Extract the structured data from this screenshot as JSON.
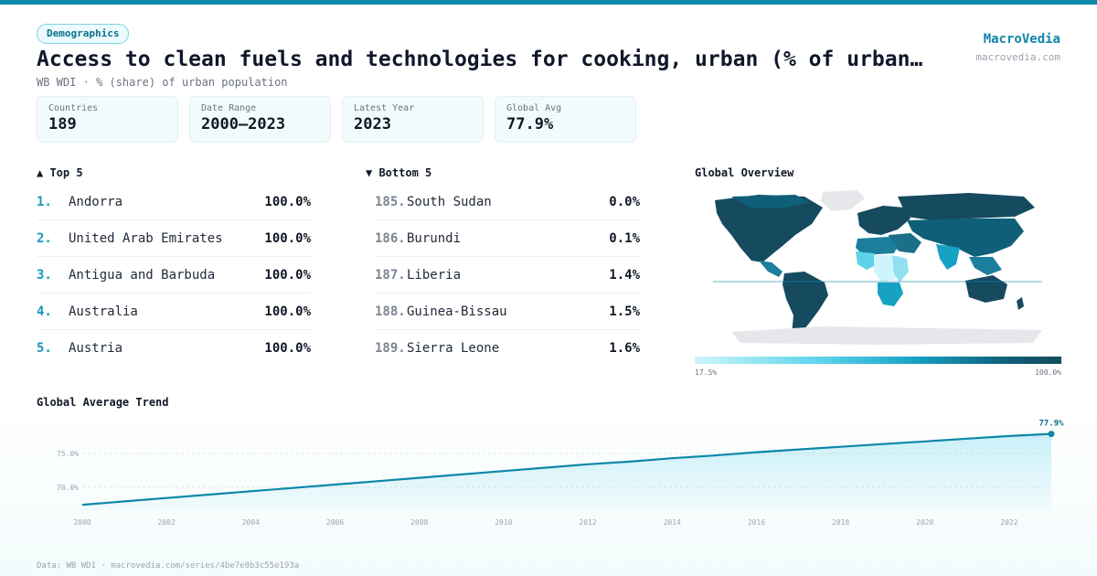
{
  "header": {
    "badge": "Demographics",
    "title": "Access to clean fuels and technologies for cooking, urban (% of urban po…",
    "subtitle": "WB WDI · % (share) of urban population",
    "brand": "MacroVedia",
    "brand_url": "macrovedia.com"
  },
  "stats": [
    {
      "label": "Countries",
      "value": "189"
    },
    {
      "label": "Date Range",
      "value": "2000–2023"
    },
    {
      "label": "Latest Year",
      "value": "2023"
    },
    {
      "label": "Global Avg",
      "value": "77.9%"
    }
  ],
  "top5": {
    "heading": "▲ Top 5",
    "items": [
      {
        "rank": "1.",
        "name": "Andorra",
        "value": "100.0%"
      },
      {
        "rank": "2.",
        "name": "United Arab Emirates",
        "value": "100.0%"
      },
      {
        "rank": "3.",
        "name": "Antigua and Barbuda",
        "value": "100.0%"
      },
      {
        "rank": "4.",
        "name": "Australia",
        "value": "100.0%"
      },
      {
        "rank": "5.",
        "name": "Austria",
        "value": "100.0%"
      }
    ]
  },
  "bottom5": {
    "heading": "▼ Bottom 5",
    "items": [
      {
        "rank": "185.",
        "name": "South Sudan",
        "value": "0.0%"
      },
      {
        "rank": "186.",
        "name": "Burundi",
        "value": "0.1%"
      },
      {
        "rank": "187.",
        "name": "Liberia",
        "value": "1.4%"
      },
      {
        "rank": "188.",
        "name": "Guinea-Bissau",
        "value": "1.5%"
      },
      {
        "rank": "189.",
        "name": "Sierra Leone",
        "value": "1.6%"
      }
    ]
  },
  "map": {
    "heading": "Global Overview",
    "legend_min": "17.5%",
    "legend_max": "100.0%",
    "colors": {
      "high": "#164a5f",
      "mid": "#17a2c4",
      "low": "#cdf5fb",
      "nodata": "#e5e7eb"
    }
  },
  "chart_data": {
    "type": "area",
    "title": "Global Average Trend",
    "x": [
      2000,
      2001,
      2002,
      2003,
      2004,
      2005,
      2006,
      2007,
      2008,
      2009,
      2010,
      2011,
      2012,
      2013,
      2014,
      2015,
      2016,
      2017,
      2018,
      2019,
      2020,
      2021,
      2022,
      2023
    ],
    "series": [
      {
        "values": [
          67.4,
          67.9,
          68.4,
          68.9,
          69.4,
          69.9,
          70.4,
          70.9,
          71.4,
          71.9,
          72.4,
          72.9,
          73.4,
          73.8,
          74.3,
          74.7,
          75.2,
          75.6,
          76.0,
          76.4,
          76.8,
          77.2,
          77.6,
          77.9
        ]
      }
    ],
    "x_ticks": [
      2000,
      2002,
      2004,
      2006,
      2008,
      2010,
      2012,
      2014,
      2016,
      2018,
      2020,
      2022
    ],
    "y_ticks": [
      70.0,
      75.0
    ],
    "y_tick_labels": [
      "70.0%",
      "75.0%"
    ],
    "ylim": [
      66.6,
      78.8
    ],
    "end_label": "77.9%",
    "line_color": "#0e87a8",
    "grid": true
  },
  "footer": "Data: WB WDI · macrovedia.com/series/4be7e0b3c55e193a"
}
